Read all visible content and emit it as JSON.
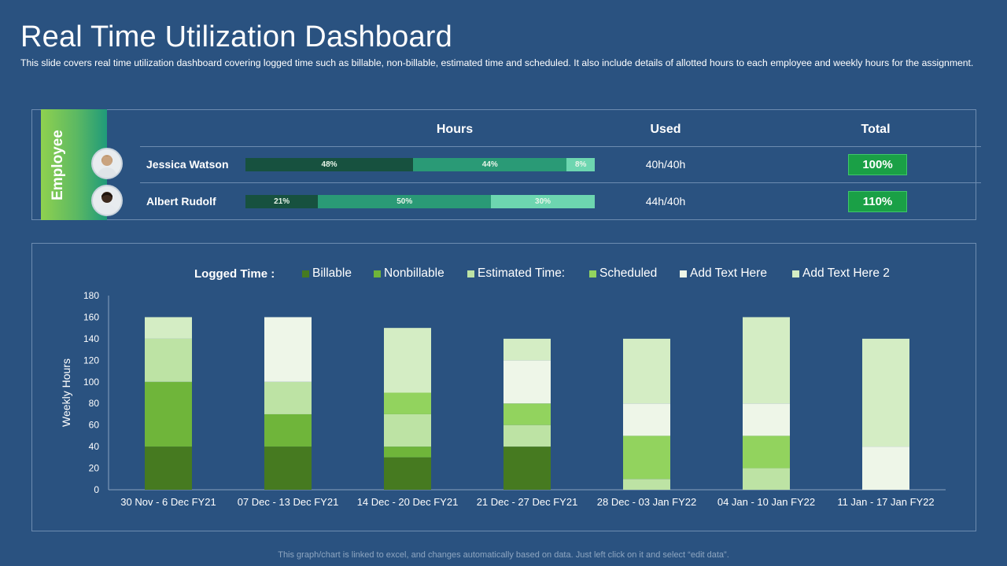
{
  "header": {
    "title": "Real Time Utilization Dashboard",
    "subtitle": "This slide covers real time utilization dashboard covering logged time such as billable, non-billable,  estimated time and scheduled. It also include details of allotted hours to each employee and weekly hours for the assignment."
  },
  "employee_table": {
    "tab_label": "Employee",
    "columns": {
      "hours": "Hours",
      "used": "Used",
      "total": "Total"
    },
    "rows": [
      {
        "name": "Jessica Watson",
        "segments": [
          48,
          44,
          8
        ],
        "segment_labels": [
          "48%",
          "44%",
          "8%"
        ],
        "used": "40h/40h",
        "total": "100%"
      },
      {
        "name": "Albert Rudolf",
        "segments": [
          21,
          50,
          30
        ],
        "segment_labels": [
          "21%",
          "50%",
          "30%"
        ],
        "used": "44h/40h",
        "total": "110%"
      }
    ],
    "segment_colors": [
      "#17513f",
      "#2a9a76",
      "#6dd6b0"
    ]
  },
  "legend": {
    "title": "Logged Time :",
    "items": [
      {
        "label": "Billable",
        "color": "#467a20"
      },
      {
        "label": "Nonbillable",
        "color": "#6fb53a"
      },
      {
        "label": "Estimated Time:",
        "color": "#bde3a4"
      },
      {
        "label": "Scheduled",
        "color": "#92d35e"
      },
      {
        "label": "Add Text Here",
        "color": "#eef6e8"
      },
      {
        "label": "Add Text Here 2",
        "color": "#d4edc4"
      }
    ]
  },
  "chart_data": {
    "type": "bar",
    "stacked": true,
    "title": "Logged Time :",
    "xlabel": "",
    "ylabel": "Weekly Hours",
    "ylim": [
      0,
      180
    ],
    "yticks": [
      0,
      20,
      40,
      60,
      80,
      100,
      120,
      140,
      160,
      180
    ],
    "categories": [
      "30 Nov - 6 Dec FY21",
      "07 Dec - 13 Dec FY21",
      "14 Dec - 20 Dec FY21",
      "21 Dec - 27 Dec FY21",
      "28 Dec - 03 Jan FY22",
      "04 Jan - 10  Jan FY22",
      "11 Jan - 17 Jan FY22"
    ],
    "series": [
      {
        "name": "Billable",
        "color": "#467a20",
        "values": [
          40,
          40,
          30,
          40,
          0,
          0,
          0
        ]
      },
      {
        "name": "Nonbillable",
        "color": "#6fb53a",
        "values": [
          60,
          30,
          10,
          0,
          0,
          0,
          0
        ]
      },
      {
        "name": "Estimated Time:",
        "color": "#bde3a4",
        "values": [
          40,
          30,
          30,
          20,
          10,
          20,
          0
        ]
      },
      {
        "name": "Scheduled",
        "color": "#92d35e",
        "values": [
          0,
          0,
          20,
          20,
          40,
          30,
          0
        ]
      },
      {
        "name": "Add Text Here",
        "color": "#eef6e8",
        "values": [
          0,
          60,
          0,
          40,
          30,
          30,
          40
        ]
      },
      {
        "name": "Add Text Here 2",
        "color": "#d4edc4",
        "values": [
          20,
          0,
          60,
          20,
          60,
          80,
          100
        ]
      }
    ]
  },
  "footer": "This graph/chart is linked to excel,  and changes automatically based on data. Just left click on it and select “edit data”."
}
